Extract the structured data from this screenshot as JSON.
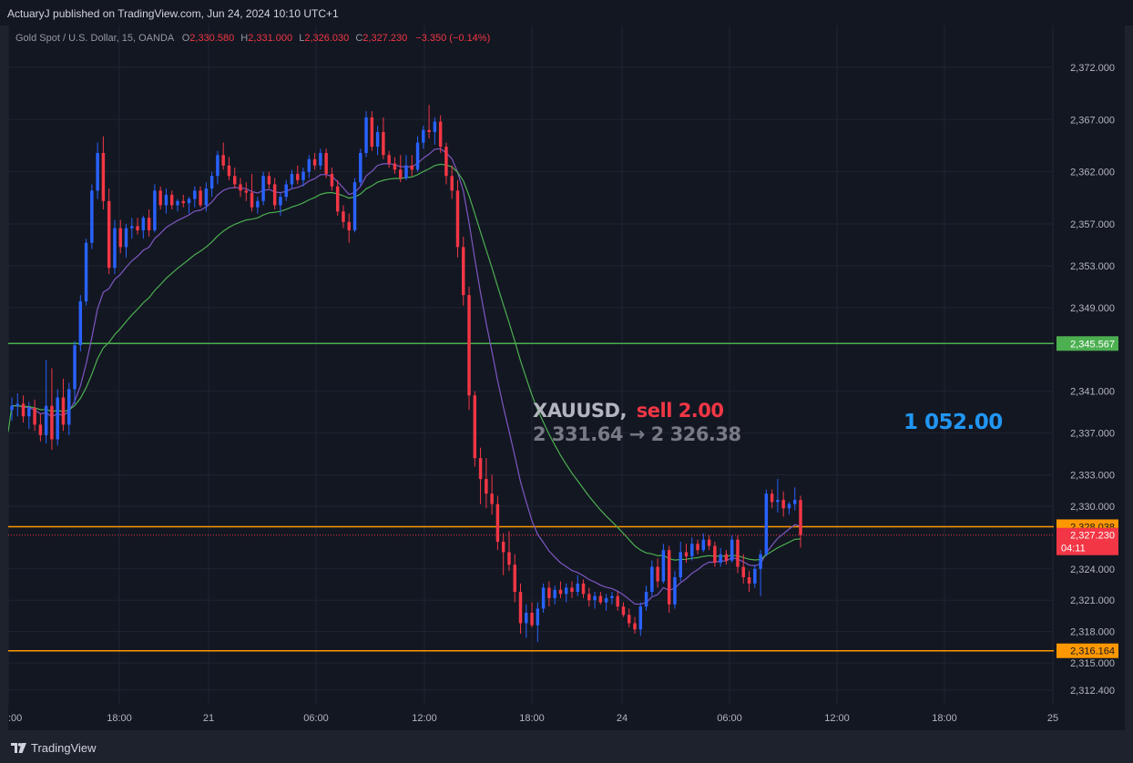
{
  "header": {
    "publisher_text": "ActuaryJ published on TradingView.com, Jun 24, 2024 10:10 UTC+1"
  },
  "footer": {
    "brand": "TradingView"
  },
  "legend": {
    "symbol_desc": "Gold Spot / U.S. Dollar, 15, OANDA",
    "o_label": "O",
    "o_value": "2,330.580",
    "h_label": "H",
    "h_value": "2,331.000",
    "l_label": "L",
    "l_value": "2,326.030",
    "c_label": "C",
    "c_value": "2,327.230",
    "change": "−3.350 (−0.14%)"
  },
  "trade_note": {
    "symbol": "XAUUSD,",
    "side": "sell 2.00",
    "price_move": "2 331.64 → 2 326.38",
    "profit": "1 052.00"
  },
  "chart_data": {
    "type": "candlestick",
    "title": "Gold Spot / U.S. Dollar, 15, OANDA",
    "timeframe": "15",
    "x_ticks": [
      ":00",
      "18:00",
      "21",
      "06:00",
      "12:00",
      "18:00",
      "24",
      "06:00",
      "12:00",
      "18:00",
      "25"
    ],
    "y_ticks": [
      "2,372.000",
      "2,367.000",
      "2,362.000",
      "2,357.000",
      "2,353.000",
      "2,349.000",
      "2,341.000",
      "2,337.000",
      "2,333.000",
      "2,330.000",
      "2,324.000",
      "2,321.000",
      "2,318.000",
      "2,315.000",
      "2,312.400"
    ],
    "y_tick_values": [
      2372,
      2367,
      2362,
      2357,
      2353,
      2349,
      2341,
      2337,
      2333,
      2330,
      2324,
      2321,
      2318,
      2315,
      2312.4
    ],
    "ylim": [
      2311,
      2376
    ],
    "horizontal_levels": [
      {
        "value": 2345.567,
        "label": "2,345.567",
        "color": "#4caf50"
      },
      {
        "value": 2328.038,
        "label": "2,328.038",
        "color": "#ff9800"
      },
      {
        "value": 2316.164,
        "label": "2,316.164",
        "color": "#ff9800"
      }
    ],
    "last_price": {
      "value": 2327.23,
      "label": "2,327.230",
      "countdown": "04:11",
      "color": "#f23645"
    },
    "colors": {
      "up": "#2962ff",
      "down": "#f23645",
      "fast_ma": "#7e57c2",
      "slow_ma": "#4caf50"
    },
    "candles": [
      [
        2339.2,
        2340.4,
        2338.2,
        2339.6
      ],
      [
        2339.6,
        2340.8,
        2338.6,
        2339.8
      ],
      [
        2339.8,
        2340.6,
        2338.0,
        2338.6
      ],
      [
        2338.6,
        2340.0,
        2337.4,
        2339.4
      ],
      [
        2339.4,
        2340.2,
        2337.2,
        2337.8
      ],
      [
        2337.8,
        2338.8,
        2336.2,
        2336.8
      ],
      [
        2336.8,
        2344.0,
        2336.0,
        2339.6
      ],
      [
        2339.6,
        2343.2,
        2335.4,
        2336.4
      ],
      [
        2336.4,
        2341.2,
        2335.8,
        2340.4
      ],
      [
        2340.4,
        2342.2,
        2337.2,
        2337.8
      ],
      [
        2337.8,
        2341.8,
        2336.8,
        2341.2
      ],
      [
        2341.2,
        2345.8,
        2339.8,
        2345.4
      ],
      [
        2345.4,
        2350.2,
        2344.8,
        2349.6
      ],
      [
        2349.6,
        2355.6,
        2349.2,
        2355.2
      ],
      [
        2355.2,
        2360.8,
        2354.6,
        2360.2
      ],
      [
        2360.2,
        2364.8,
        2359.4,
        2363.8
      ],
      [
        2363.8,
        2365.4,
        2358.4,
        2359.2
      ],
      [
        2359.2,
        2360.4,
        2352.2,
        2352.8
      ],
      [
        2352.8,
        2357.4,
        2352.2,
        2356.6
      ],
      [
        2356.6,
        2357.4,
        2354.2,
        2354.8
      ],
      [
        2354.8,
        2357.0,
        2353.8,
        2356.6
      ],
      [
        2356.6,
        2357.6,
        2355.6,
        2356.8
      ],
      [
        2356.8,
        2357.6,
        2356.0,
        2356.4
      ],
      [
        2356.4,
        2357.8,
        2355.6,
        2357.6
      ],
      [
        2357.6,
        2358.4,
        2355.8,
        2356.4
      ],
      [
        2356.4,
        2360.8,
        2356.2,
        2360.2
      ],
      [
        2360.2,
        2360.6,
        2358.4,
        2358.8
      ],
      [
        2358.8,
        2360.4,
        2358.0,
        2359.8
      ],
      [
        2359.8,
        2360.2,
        2358.4,
        2358.8
      ],
      [
        2358.8,
        2359.4,
        2358.2,
        2359.2
      ],
      [
        2359.2,
        2359.8,
        2358.6,
        2359.0
      ],
      [
        2359.0,
        2359.6,
        2358.0,
        2359.4
      ],
      [
        2359.4,
        2360.6,
        2358.6,
        2360.2
      ],
      [
        2360.2,
        2360.6,
        2358.6,
        2358.8
      ],
      [
        2358.8,
        2361.0,
        2358.2,
        2360.4
      ],
      [
        2360.4,
        2362.0,
        2359.6,
        2361.6
      ],
      [
        2361.6,
        2364.0,
        2360.8,
        2363.6
      ],
      [
        2363.6,
        2364.8,
        2362.2,
        2362.6
      ],
      [
        2362.6,
        2363.4,
        2361.2,
        2361.6
      ],
      [
        2361.6,
        2362.4,
        2360.4,
        2360.8
      ],
      [
        2360.8,
        2361.4,
        2359.6,
        2360.2
      ],
      [
        2360.2,
        2361.0,
        2359.2,
        2360.0
      ],
      [
        2360.0,
        2361.8,
        2358.2,
        2358.6
      ],
      [
        2358.6,
        2359.6,
        2358.0,
        2359.2
      ],
      [
        2359.2,
        2362.0,
        2358.8,
        2361.6
      ],
      [
        2361.6,
        2362.0,
        2360.4,
        2360.8
      ],
      [
        2360.8,
        2361.4,
        2358.4,
        2358.8
      ],
      [
        2358.8,
        2360.0,
        2357.8,
        2359.6
      ],
      [
        2359.6,
        2361.2,
        2359.2,
        2360.8
      ],
      [
        2360.8,
        2362.2,
        2360.4,
        2361.8
      ],
      [
        2361.8,
        2362.6,
        2360.8,
        2361.2
      ],
      [
        2361.2,
        2362.4,
        2360.6,
        2362.0
      ],
      [
        2362.0,
        2363.6,
        2361.4,
        2363.2
      ],
      [
        2363.2,
        2363.8,
        2362.2,
        2362.6
      ],
      [
        2362.6,
        2364.2,
        2362.2,
        2363.8
      ],
      [
        2363.8,
        2364.2,
        2361.4,
        2361.8
      ],
      [
        2361.8,
        2362.4,
        2360.2,
        2360.6
      ],
      [
        2360.6,
        2361.2,
        2357.8,
        2358.2
      ],
      [
        2358.2,
        2358.8,
        2356.6,
        2357.2
      ],
      [
        2357.2,
        2358.0,
        2355.2,
        2356.4
      ],
      [
        2356.4,
        2361.4,
        2356.2,
        2361.0
      ],
      [
        2361.0,
        2364.2,
        2360.6,
        2363.8
      ],
      [
        2363.8,
        2367.8,
        2363.4,
        2367.2
      ],
      [
        2367.2,
        2367.8,
        2364.0,
        2364.4
      ],
      [
        2364.4,
        2366.4,
        2363.6,
        2365.8
      ],
      [
        2365.8,
        2367.2,
        2363.2,
        2363.6
      ],
      [
        2363.6,
        2364.0,
        2362.4,
        2362.8
      ],
      [
        2362.8,
        2363.4,
        2361.8,
        2362.2
      ],
      [
        2362.2,
        2363.6,
        2361.0,
        2361.4
      ],
      [
        2361.4,
        2363.6,
        2361.2,
        2362.6
      ],
      [
        2362.6,
        2363.6,
        2361.6,
        2362.2
      ],
      [
        2362.2,
        2365.4,
        2362.0,
        2364.8
      ],
      [
        2364.8,
        2366.4,
        2364.2,
        2366.0
      ],
      [
        2366.0,
        2368.4,
        2365.2,
        2365.8
      ],
      [
        2365.8,
        2367.2,
        2364.6,
        2366.8
      ],
      [
        2366.8,
        2367.4,
        2363.8,
        2364.4
      ],
      [
        2364.4,
        2364.8,
        2360.8,
        2361.6
      ],
      [
        2361.6,
        2362.6,
        2359.4,
        2360.2
      ],
      [
        2360.2,
        2361.2,
        2353.8,
        2354.8
      ],
      [
        2354.8,
        2355.8,
        2349.2,
        2350.2
      ],
      [
        2350.2,
        2351.0,
        2339.2,
        2340.6
      ],
      [
        2340.6,
        2341.0,
        2333.8,
        2334.6
      ],
      [
        2334.6,
        2335.6,
        2330.2,
        2332.6
      ],
      [
        2332.6,
        2334.6,
        2329.8,
        2331.2
      ],
      [
        2331.2,
        2333.0,
        2329.2,
        2330.2
      ],
      [
        2330.2,
        2331.0,
        2325.8,
        2326.6
      ],
      [
        2326.6,
        2327.4,
        2323.4,
        2325.6
      ],
      [
        2325.6,
        2327.6,
        2323.8,
        2324.4
      ],
      [
        2324.4,
        2325.4,
        2320.8,
        2321.8
      ],
      [
        2321.8,
        2322.6,
        2317.8,
        2318.8
      ],
      [
        2318.8,
        2320.6,
        2317.4,
        2319.8
      ],
      [
        2319.8,
        2320.8,
        2318.4,
        2318.6
      ],
      [
        2318.6,
        2320.8,
        2317.0,
        2320.2
      ],
      [
        2320.2,
        2322.6,
        2319.8,
        2322.2
      ],
      [
        2322.2,
        2322.8,
        2320.4,
        2321.2
      ],
      [
        2321.2,
        2322.4,
        2320.6,
        2322.0
      ],
      [
        2322.0,
        2322.8,
        2321.2,
        2321.6
      ],
      [
        2321.6,
        2322.6,
        2320.8,
        2322.2
      ],
      [
        2322.2,
        2322.8,
        2321.2,
        2321.8
      ],
      [
        2321.8,
        2323.4,
        2321.4,
        2322.6
      ],
      [
        2322.6,
        2323.0,
        2321.2,
        2321.6
      ],
      [
        2321.6,
        2322.2,
        2320.4,
        2321.0
      ],
      [
        2321.0,
        2321.8,
        2320.2,
        2321.4
      ],
      [
        2321.4,
        2321.8,
        2320.6,
        2320.8
      ],
      [
        2320.8,
        2321.6,
        2320.0,
        2321.2
      ],
      [
        2321.2,
        2321.8,
        2320.6,
        2321.4
      ],
      [
        2321.4,
        2321.8,
        2320.0,
        2320.4
      ],
      [
        2320.4,
        2320.8,
        2319.4,
        2319.6
      ],
      [
        2319.6,
        2320.2,
        2318.4,
        2318.8
      ],
      [
        2318.8,
        2319.4,
        2317.8,
        2318.2
      ],
      [
        2318.2,
        2320.8,
        2317.6,
        2320.4
      ],
      [
        2320.4,
        2322.4,
        2320.0,
        2321.8
      ],
      [
        2321.8,
        2324.8,
        2321.4,
        2324.2
      ],
      [
        2324.2,
        2325.0,
        2322.2,
        2322.8
      ],
      [
        2322.8,
        2326.4,
        2322.6,
        2325.8
      ],
      [
        2325.8,
        2326.2,
        2319.8,
        2320.6
      ],
      [
        2320.6,
        2323.8,
        2320.2,
        2323.2
      ],
      [
        2323.2,
        2326.6,
        2322.8,
        2325.6
      ],
      [
        2325.6,
        2326.4,
        2324.6,
        2325.2
      ],
      [
        2325.2,
        2327.0,
        2324.8,
        2326.4
      ],
      [
        2326.4,
        2326.8,
        2325.4,
        2325.8
      ],
      [
        2325.8,
        2327.4,
        2325.6,
        2326.8
      ],
      [
        2326.8,
        2327.2,
        2325.8,
        2326.2
      ],
      [
        2326.2,
        2326.6,
        2324.2,
        2324.6
      ],
      [
        2324.6,
        2326.0,
        2324.2,
        2325.4
      ],
      [
        2325.4,
        2325.8,
        2324.4,
        2324.8
      ],
      [
        2324.8,
        2327.2,
        2324.6,
        2326.8
      ],
      [
        2326.8,
        2327.2,
        2323.6,
        2324.2
      ],
      [
        2324.2,
        2325.4,
        2322.6,
        2323.2
      ],
      [
        2323.2,
        2323.8,
        2321.8,
        2322.6
      ],
      [
        2322.6,
        2324.4,
        2322.2,
        2324.0
      ],
      [
        2324.0,
        2325.8,
        2321.4,
        2325.4
      ],
      [
        2325.4,
        2331.6,
        2325.2,
        2331.2
      ],
      [
        2331.2,
        2331.6,
        2329.8,
        2330.4
      ],
      [
        2330.4,
        2332.6,
        2329.4,
        2330.6
      ],
      [
        2330.6,
        2331.4,
        2329.0,
        2329.8
      ],
      [
        2329.8,
        2330.4,
        2329.2,
        2330.2
      ],
      [
        2330.2,
        2331.8,
        2329.6,
        2330.6
      ],
      [
        2330.58,
        2331.0,
        2326.03,
        2327.23
      ]
    ]
  }
}
